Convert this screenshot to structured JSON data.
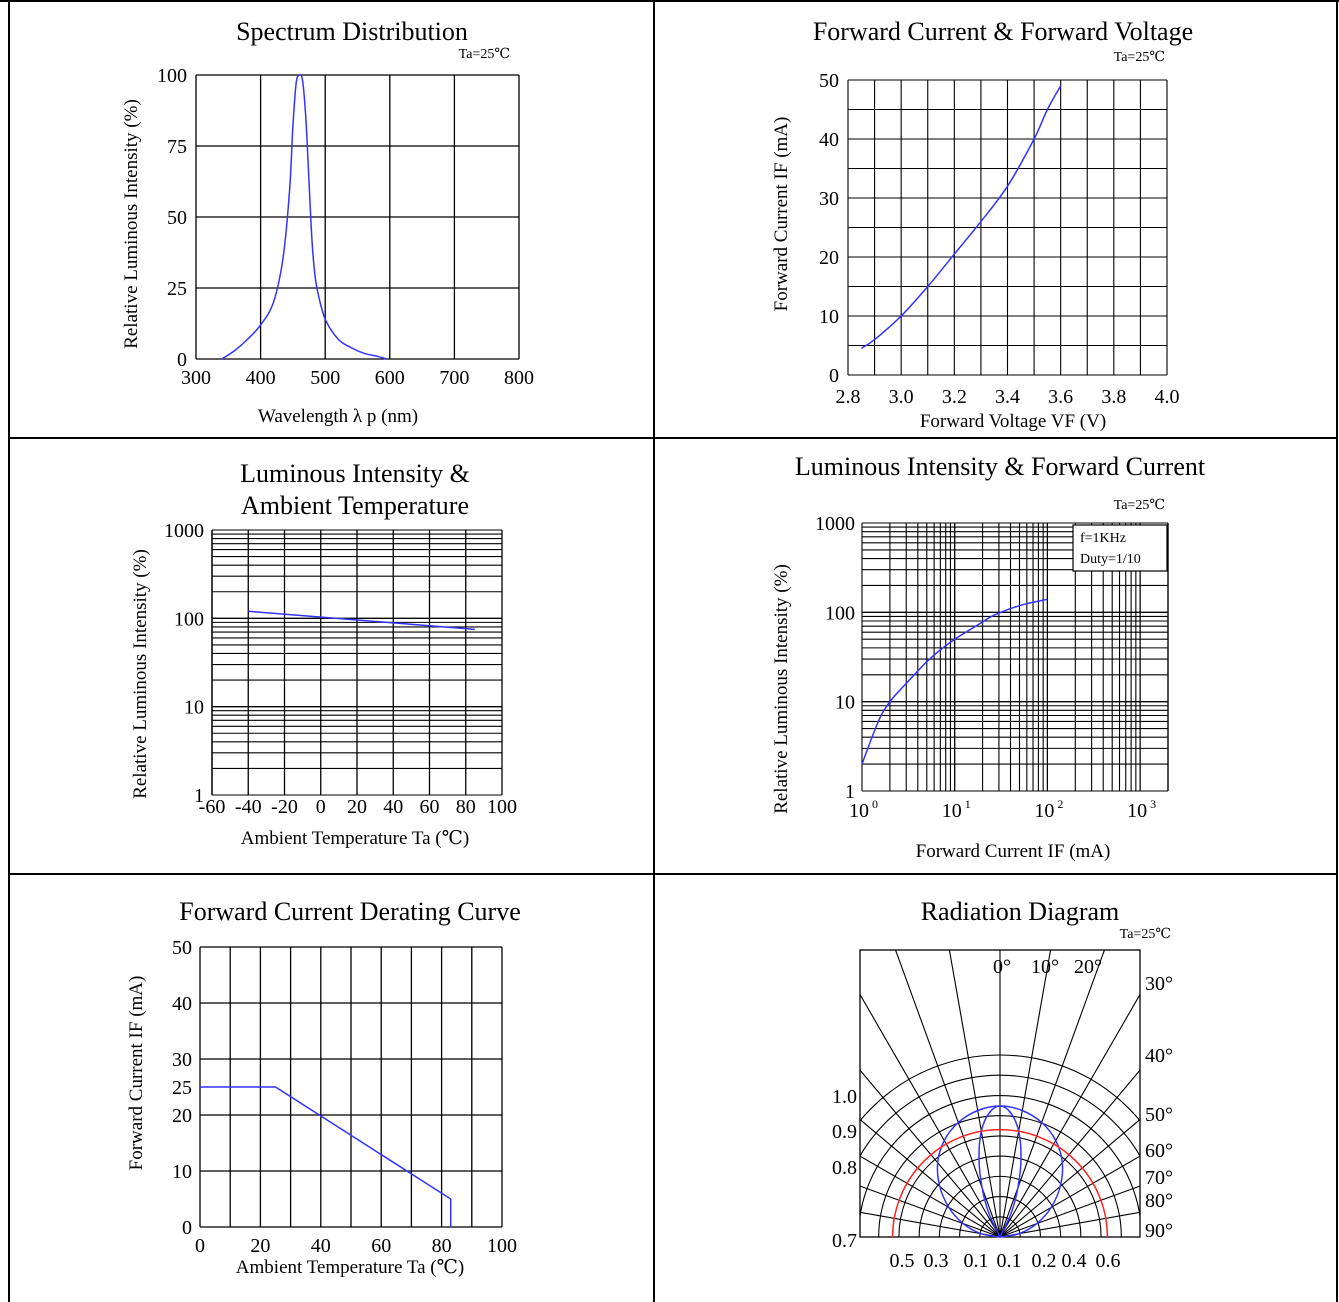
{
  "charts": {
    "spectrum": {
      "title": "Spectrum Distribution",
      "condition": "Ta=25℃",
      "xlabel": "Wavelength λ p (nm)",
      "ylabel": "Relative Luminous Intensity (%)",
      "xticks": [
        "300",
        "400",
        "500",
        "600",
        "700",
        "800"
      ],
      "yticks": [
        "0",
        "25",
        "50",
        "75",
        "100"
      ]
    },
    "ifvf": {
      "title": "Forward Current & Forward Voltage",
      "condition": "Ta=25℃",
      "xlabel": "Forward Voltage  VF (V)",
      "ylabel": "Forward Current IF (mA)",
      "xticks": [
        "2.8",
        "3.0",
        "3.2",
        "3.4",
        "3.6",
        "3.8",
        "4.0"
      ],
      "yticks": [
        "0",
        "10",
        "20",
        "30",
        "40",
        "50"
      ]
    },
    "ivtemp": {
      "title_line1": "Luminous Intensity &",
      "title_line2": "Ambient Temperature",
      "xlabel": "Ambient Temperature Ta (℃)",
      "ylabel": "Relative Luminous Intensity (%)",
      "xticks": [
        "-60",
        "-40",
        "-20",
        "0",
        "20",
        "40",
        "60",
        "80",
        "100"
      ],
      "yticks": [
        "1",
        "10",
        "100",
        "1000"
      ]
    },
    "ivif": {
      "title": "Luminous Intensity & Forward Current",
      "condition": "Ta=25℃",
      "legend_line1": "f=1KHz",
      "legend_line2": "Duty=1/10",
      "xlabel": "Forward Current IF (mA)",
      "ylabel": "Relative Luminous Intensity (%)",
      "xtick_base": "10",
      "xtick_exps": [
        "0",
        "1",
        "2",
        "3"
      ],
      "yticks": [
        "1",
        "10",
        "100",
        "1000"
      ]
    },
    "derating": {
      "title": "Forward Current Derating Curve",
      "xlabel": "Ambient Temperature Ta (℃)",
      "ylabel": "Forward Current IF (mA)",
      "xticks": [
        "0",
        "20",
        "40",
        "60",
        "80",
        "100"
      ],
      "yticks": [
        "0",
        "10",
        "20",
        "25",
        "30",
        "40",
        "50"
      ]
    },
    "radiation": {
      "title": "Radiation Diagram",
      "condition": "Ta=25℃",
      "angle_top": [
        "0°",
        "10°",
        "20°"
      ],
      "angle_right": [
        "30°",
        "40°",
        "50°",
        "60°",
        "70°",
        "80°",
        "90°"
      ],
      "left_ticks": [
        "1.0",
        "0.9",
        "0.8",
        "0.7"
      ],
      "bottom_ticks": [
        "0.5",
        "0.3",
        "0.1",
        "0.1",
        "0.2",
        "0.4",
        "0.6"
      ]
    }
  },
  "chart_data": [
    {
      "type": "line",
      "title": "Spectrum Distribution",
      "xlabel": "Wavelength λ p (nm)",
      "ylabel": "Relative Luminous Intensity (%)",
      "xlim": [
        300,
        800
      ],
      "ylim": [
        0,
        100
      ],
      "grid": true,
      "series": [
        {
          "x": [
            340,
            360,
            380,
            400,
            420,
            435,
            445,
            450,
            455,
            460,
            465,
            470,
            475,
            480,
            485,
            490,
            500,
            520,
            540,
            560,
            580,
            595
          ],
          "y": [
            0,
            3,
            7,
            12,
            20,
            36,
            60,
            82,
            97,
            100,
            98,
            85,
            62,
            40,
            28,
            22,
            14,
            7,
            4,
            2,
            1,
            0
          ]
        }
      ]
    },
    {
      "type": "line",
      "title": "Forward Current & Forward Voltage",
      "xlabel": "Forward Voltage  VF (V)",
      "ylabel": "Forward Current IF (mA)",
      "xlim": [
        2.8,
        4.0
      ],
      "ylim": [
        0,
        50
      ],
      "grid": true,
      "series": [
        {
          "x": [
            2.85,
            2.9,
            3.0,
            3.1,
            3.2,
            3.3,
            3.4,
            3.5,
            3.55,
            3.6
          ],
          "y": [
            4.5,
            6,
            10,
            15,
            20.5,
            26,
            32,
            40,
            45,
            49
          ]
        }
      ]
    },
    {
      "type": "line",
      "title": "Luminous Intensity & Ambient Temperature",
      "xlabel": "Ambient Temperature Ta (℃)",
      "ylabel": "Relative Luminous Intensity (%)",
      "xlim": [
        -60,
        100
      ],
      "ylim": [
        1,
        1000
      ],
      "yscale": "log",
      "grid": true,
      "series": [
        {
          "x": [
            -40,
            85
          ],
          "y": [
            120,
            75
          ]
        }
      ]
    },
    {
      "type": "line",
      "title": "Luminous Intensity & Forward Current",
      "xlabel": "Forward Current IF (mA)",
      "ylabel": "Relative Luminous Intensity (%)",
      "xlim": [
        1,
        2000
      ],
      "ylim": [
        1,
        1000
      ],
      "xscale": "log",
      "yscale": "log",
      "grid": true,
      "series": [
        {
          "x": [
            1,
            1.5,
            2,
            3,
            5,
            7,
            10,
            15,
            20,
            25,
            40,
            60,
            100
          ],
          "y": [
            2,
            6,
            10,
            16,
            28,
            38,
            50,
            65,
            78,
            90,
            110,
            125,
            140
          ]
        }
      ]
    },
    {
      "type": "line",
      "title": "Forward Current Derating Curve",
      "xlabel": "Ambient Temperature Ta (℃)",
      "ylabel": "Forward Current IF (mA)",
      "xlim": [
        0,
        100
      ],
      "ylim": [
        0,
        50
      ],
      "grid": true,
      "series": [
        {
          "x": [
            0,
            25,
            83,
            83
          ],
          "y": [
            25,
            25,
            5,
            0
          ]
        }
      ]
    },
    {
      "type": "polar",
      "title": "Radiation Diagram",
      "grid": true,
      "series": [
        {
          "color": "#3333ff",
          "angle_deg": [
            0,
            10,
            20,
            30,
            40,
            50,
            60,
            70,
            80,
            90
          ],
          "r": [
            1.0,
            0.98,
            0.93,
            0.85,
            0.74,
            0.6,
            0.45,
            0.3,
            0.15,
            0.0
          ]
        },
        {
          "color": "#3333ff",
          "angle_deg": [
            0,
            5,
            10,
            15,
            20,
            25,
            30
          ],
          "r": [
            1.0,
            0.95,
            0.82,
            0.62,
            0.4,
            0.2,
            0.0
          ]
        },
        {
          "color": "#ff2222",
          "angle_deg": [
            0,
            90
          ],
          "r": [
            0.5,
            0.5
          ]
        }
      ]
    }
  ]
}
